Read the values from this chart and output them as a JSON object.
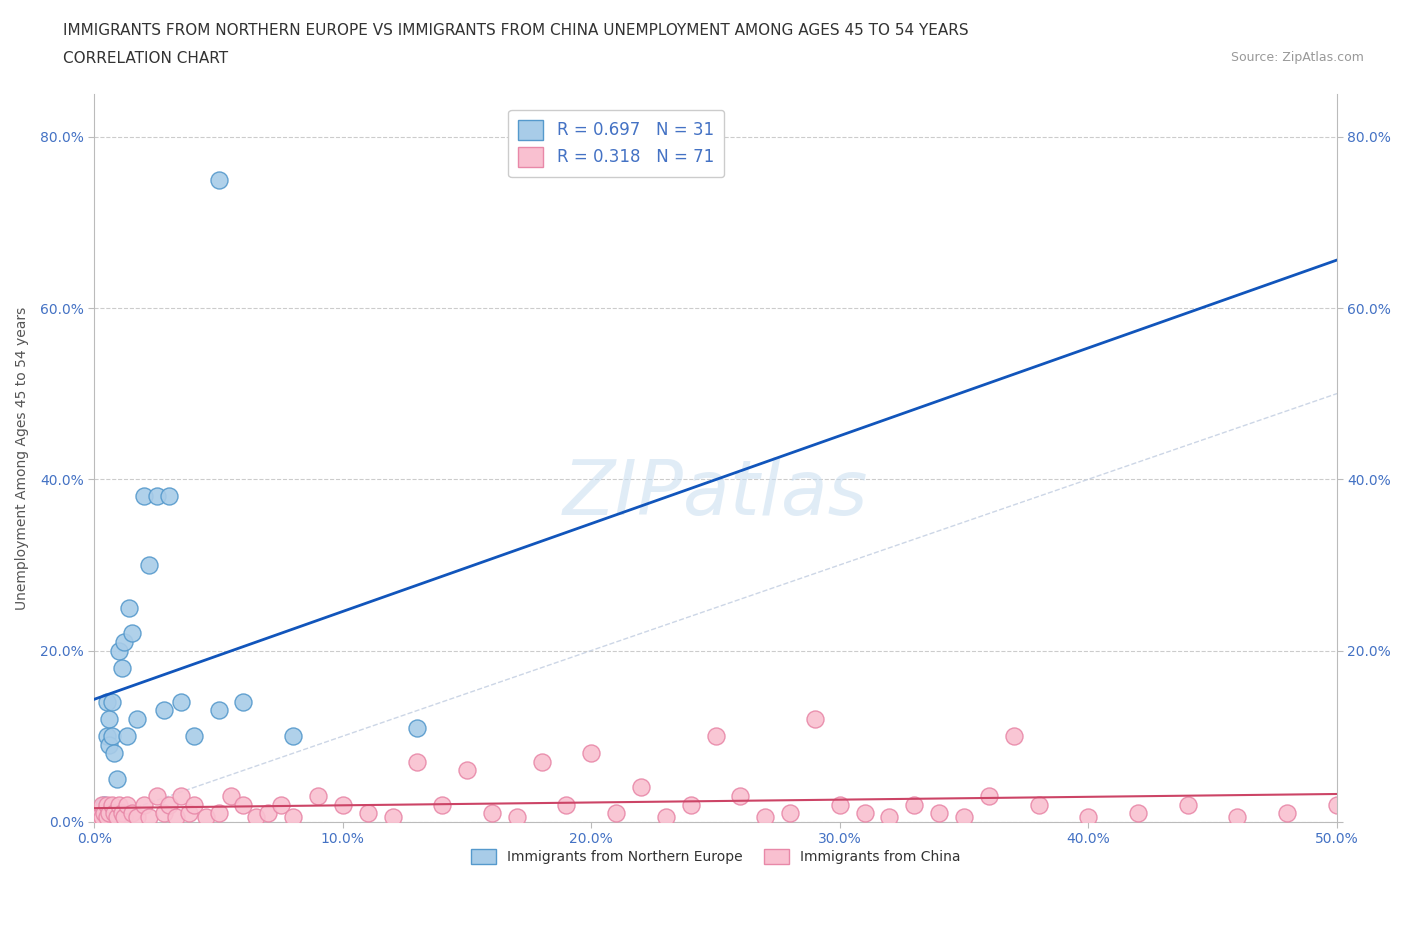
{
  "title_line1": "IMMIGRANTS FROM NORTHERN EUROPE VS IMMIGRANTS FROM CHINA UNEMPLOYMENT AMONG AGES 45 TO 54 YEARS",
  "title_line2": "CORRELATION CHART",
  "source_text": "Source: ZipAtlas.com",
  "ylabel": "Unemployment Among Ages 45 to 54 years",
  "xlim": [
    0.0,
    0.5
  ],
  "ylim": [
    0.0,
    0.85
  ],
  "xticks": [
    0.0,
    0.1,
    0.2,
    0.3,
    0.4,
    0.5
  ],
  "yticks": [
    0.0,
    0.2,
    0.4,
    0.6,
    0.8
  ],
  "xtick_labels": [
    "0.0%",
    "10.0%",
    "20.0%",
    "30.0%",
    "40.0%",
    "50.0%"
  ],
  "ytick_labels_left": [
    "0.0%",
    "20.0%",
    "40.0%",
    "60.0%",
    "80.0%"
  ],
  "ytick_labels_right": [
    "",
    "20.0%",
    "40.0%",
    "60.0%",
    "80.0%"
  ],
  "blue_color": "#a8cce8",
  "pink_color": "#f9c0d0",
  "blue_edge_color": "#5599cc",
  "pink_edge_color": "#e888a8",
  "regression_blue_color": "#1155bb",
  "regression_pink_color": "#cc4466",
  "diagonal_color": "#c0cce0",
  "R_blue": 0.697,
  "N_blue": 31,
  "R_pink": 0.318,
  "N_pink": 71,
  "blue_scatter_x": [
    0.001,
    0.002,
    0.003,
    0.004,
    0.005,
    0.005,
    0.006,
    0.006,
    0.007,
    0.007,
    0.008,
    0.009,
    0.01,
    0.011,
    0.012,
    0.013,
    0.014,
    0.015,
    0.017,
    0.02,
    0.022,
    0.025,
    0.028,
    0.03,
    0.035,
    0.04,
    0.05,
    0.06,
    0.08,
    0.13,
    0.05
  ],
  "blue_scatter_y": [
    0.005,
    0.01,
    0.005,
    0.02,
    0.1,
    0.14,
    0.12,
    0.09,
    0.1,
    0.14,
    0.08,
    0.05,
    0.2,
    0.18,
    0.21,
    0.1,
    0.25,
    0.22,
    0.12,
    0.38,
    0.3,
    0.38,
    0.13,
    0.38,
    0.14,
    0.1,
    0.13,
    0.14,
    0.1,
    0.11,
    0.75
  ],
  "pink_scatter_x": [
    0.0,
    0.001,
    0.002,
    0.003,
    0.003,
    0.004,
    0.005,
    0.005,
    0.006,
    0.007,
    0.008,
    0.009,
    0.01,
    0.011,
    0.012,
    0.013,
    0.015,
    0.017,
    0.02,
    0.022,
    0.025,
    0.028,
    0.03,
    0.033,
    0.035,
    0.038,
    0.04,
    0.045,
    0.05,
    0.055,
    0.06,
    0.065,
    0.07,
    0.075,
    0.08,
    0.09,
    0.1,
    0.11,
    0.12,
    0.13,
    0.14,
    0.15,
    0.16,
    0.17,
    0.18,
    0.19,
    0.2,
    0.21,
    0.22,
    0.23,
    0.24,
    0.26,
    0.28,
    0.3,
    0.32,
    0.34,
    0.36,
    0.38,
    0.4,
    0.42,
    0.44,
    0.46,
    0.48,
    0.5,
    0.25,
    0.27,
    0.29,
    0.31,
    0.33,
    0.35,
    0.37
  ],
  "pink_scatter_y": [
    0.005,
    0.01,
    0.005,
    0.02,
    0.005,
    0.01,
    0.02,
    0.005,
    0.01,
    0.02,
    0.01,
    0.005,
    0.02,
    0.01,
    0.005,
    0.02,
    0.01,
    0.005,
    0.02,
    0.005,
    0.03,
    0.01,
    0.02,
    0.005,
    0.03,
    0.01,
    0.02,
    0.005,
    0.01,
    0.03,
    0.02,
    0.005,
    0.01,
    0.02,
    0.005,
    0.03,
    0.02,
    0.01,
    0.005,
    0.07,
    0.02,
    0.06,
    0.01,
    0.005,
    0.07,
    0.02,
    0.08,
    0.01,
    0.04,
    0.005,
    0.02,
    0.03,
    0.01,
    0.02,
    0.005,
    0.01,
    0.03,
    0.02,
    0.005,
    0.01,
    0.02,
    0.005,
    0.01,
    0.02,
    0.1,
    0.005,
    0.12,
    0.01,
    0.02,
    0.005,
    0.1
  ],
  "watermark_text": "ZIPatlas",
  "background_color": "#ffffff",
  "grid_color": "#cccccc",
  "title_fontsize": 11,
  "axis_label_fontsize": 10,
  "tick_fontsize": 10,
  "tick_color": "#4472c4",
  "legend_fontsize": 12
}
